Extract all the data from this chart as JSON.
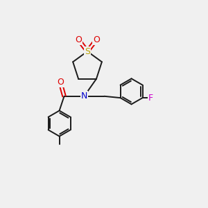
{
  "bg_color": "#f0f0f0",
  "bond_color": "#1a1a1a",
  "atom_colors": {
    "S": "#b8a000",
    "O": "#dd0000",
    "N": "#0000cc",
    "F": "#cc00cc",
    "C": "#1a1a1a"
  },
  "figsize": [
    3.0,
    3.0
  ],
  "dpi": 100
}
